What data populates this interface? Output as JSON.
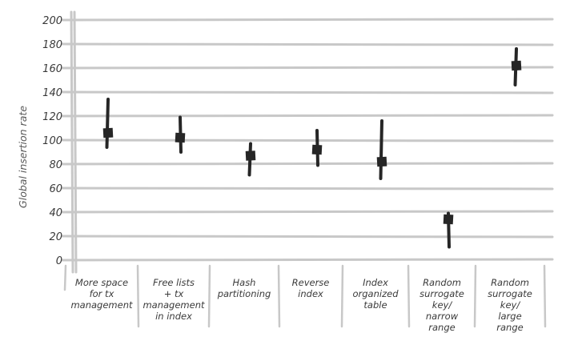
{
  "chart_data": {
    "type": "error-bar",
    "title": "",
    "xlabel": "",
    "ylabel": "Global insertion rate",
    "ylim": [
      0,
      200
    ],
    "yticks": [
      0,
      20,
      40,
      60,
      80,
      100,
      120,
      140,
      160,
      180,
      200
    ],
    "grid": true,
    "categories": [
      [
        "More space",
        "for tx",
        "management"
      ],
      [
        "Free lists",
        "+ tx",
        "management",
        "in index"
      ],
      [
        "Hash",
        "partitioning"
      ],
      [
        "Reverse",
        "index"
      ],
      [
        "Index",
        "organized",
        "table"
      ],
      [
        "Random",
        "surrogate",
        "key/",
        "narrow",
        "range"
      ],
      [
        "Random",
        "surrogate",
        "key/",
        "large",
        "range"
      ]
    ],
    "series": [
      {
        "values": [
          106,
          102,
          87,
          92,
          82,
          34,
          162
        ],
        "low": [
          94,
          90,
          71,
          79,
          68,
          11,
          146
        ],
        "high": [
          134,
          119,
          97,
          108,
          116,
          39,
          176
        ]
      }
    ],
    "colors": {
      "grid": "#c8c8c8",
      "axis": "#c8c8c8",
      "marker": "#262626"
    }
  }
}
